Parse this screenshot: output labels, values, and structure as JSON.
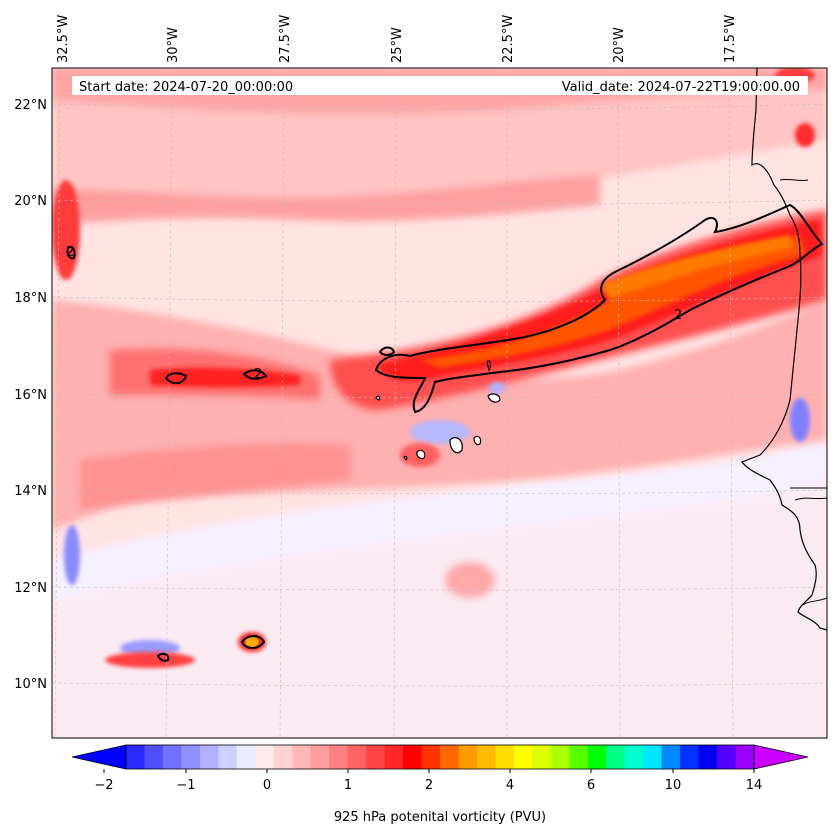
{
  "map": {
    "start_date_label": "Start date: 2024-07-20_00:00:00",
    "valid_date_label": "Valid_date: 2024-07-22T19:00:00.00",
    "lon_labels": [
      "32.5°W",
      "30°W",
      "27.5°W",
      "25°W",
      "22.5°W",
      "20°W",
      "17.5°W"
    ],
    "lat_labels": [
      "22°N",
      "20°N",
      "18°N",
      "16°N",
      "14°N",
      "12°N",
      "10°N"
    ],
    "contour_level_label": "2",
    "colors": {
      "background_field": "#ffe3e3",
      "weak_positive": "#ffd0d0",
      "moderate_positive": "#ffa8a8",
      "strong_positive": "#ff5555",
      "very_strong": "#ff2020",
      "core": "#ff6600",
      "core_max": "#ffaa00",
      "negative_weak": "#e6e6ff",
      "negative": "#9a9aff",
      "coastline": "#000000",
      "contour": "#000000"
    }
  },
  "colorbar": {
    "title": "925 hPa potenital vorticity (PVU)",
    "tick_labels": [
      "−2",
      "−1",
      "0",
      "1",
      "2",
      "4",
      "6",
      "10",
      "14"
    ],
    "colors": [
      "#0000ff",
      "#2a2aff",
      "#4f4fff",
      "#7272ff",
      "#9191ff",
      "#b0b0ff",
      "#d0d0ff",
      "#ececff",
      "#ffe8e8",
      "#ffd2d2",
      "#ffb8b8",
      "#ff9c9c",
      "#ff8080",
      "#ff6464",
      "#ff4444",
      "#ff2828",
      "#ff0000",
      "#ff3300",
      "#ff6600",
      "#ff9900",
      "#ffbb00",
      "#ffdd00",
      "#ffff00",
      "#ddff00",
      "#aaff00",
      "#55ff00",
      "#00ff00",
      "#00ff88",
      "#00ffcc",
      "#00e6ff",
      "#0088ff",
      "#0033ff",
      "#0000ee",
      "#5500ff",
      "#9900ff",
      "#cc00ff"
    ]
  }
}
